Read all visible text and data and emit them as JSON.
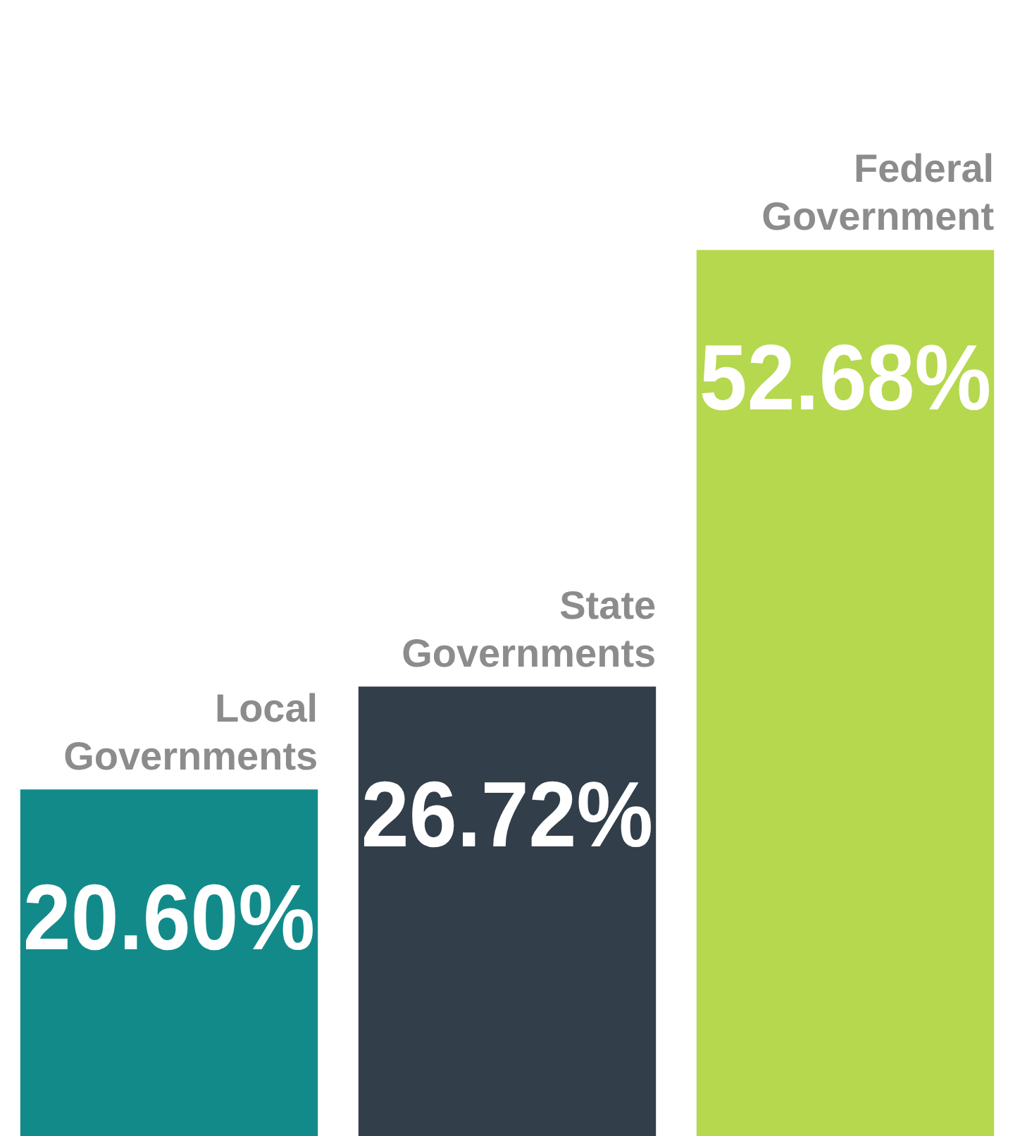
{
  "chart_data": {
    "type": "bar",
    "categories": [
      "Local Governments",
      "State Governments",
      "Federal Government"
    ],
    "values": [
      20.6,
      26.72,
      52.68
    ],
    "colors": [
      "#138a8a",
      "#323e4a",
      "#b5d84e"
    ],
    "value_labels": [
      "20.60%",
      "26.72%",
      "52.68%"
    ],
    "tick_labels": false,
    "legend": false
  }
}
